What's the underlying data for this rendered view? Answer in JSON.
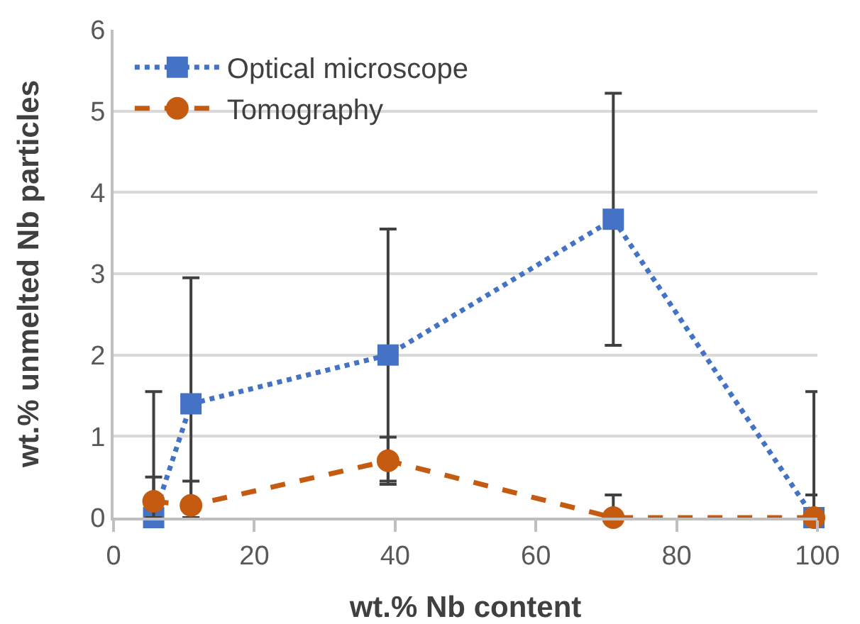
{
  "chart_data": {
    "type": "line",
    "xlabel": "wt.% Nb content",
    "ylabel": "wt.% unmelted Nb particles",
    "xlim": [
      0,
      100
    ],
    "xticks": [
      0,
      20,
      40,
      60,
      80,
      100
    ],
    "ylim": [
      0,
      6
    ],
    "yticks": [
      0,
      1,
      2,
      3,
      4,
      5,
      6
    ],
    "grid": "y",
    "legend": "top left",
    "series": [
      {
        "name": "Optical microscope",
        "color": "#4472c4",
        "marker": "square",
        "line_style": "dotted",
        "x": [
          5.7,
          11,
          39,
          71,
          99.5
        ],
        "values": [
          0,
          1.4,
          2.0,
          3.67,
          0
        ],
        "errors": [
          [
            0,
            1.55
          ],
          [
            0,
            2.95
          ],
          1.55,
          1.55,
          [
            0,
            1.55
          ]
        ]
      },
      {
        "name": "Tomography",
        "color": "#c55a11",
        "marker": "circle",
        "line_style": "dashed",
        "x": [
          5.7,
          11,
          39,
          71,
          99.5
        ],
        "values": [
          0.2,
          0.15,
          0.7,
          0,
          0
        ],
        "errors": [
          [
            0,
            0.5
          ],
          [
            0,
            0.45
          ],
          0.29,
          [
            0,
            0.28
          ],
          [
            0,
            0.28
          ]
        ]
      }
    ]
  }
}
